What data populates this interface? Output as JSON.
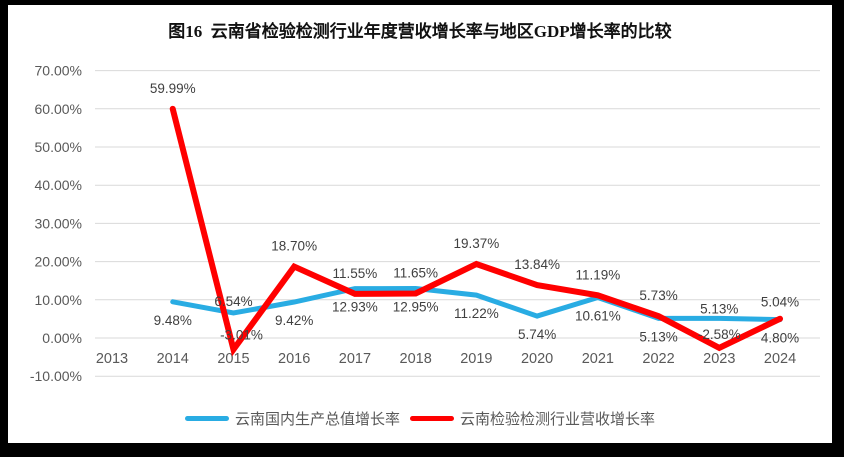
{
  "title": "图16  云南省检验检测行业年度营收增长率与地区GDP增长率的比较",
  "chart_data": {
    "type": "line",
    "title": "图16  云南省检验检测行业年度营收增长率与地区GDP增长率的比较",
    "categories": [
      "2013",
      "2014",
      "2015",
      "2016",
      "2017",
      "2018",
      "2019",
      "2020",
      "2021",
      "2022",
      "2023",
      "2024"
    ],
    "series": [
      {
        "name": "云南国内生产总值增长率",
        "color": "#29ACE3",
        "values": [
          null,
          9.48,
          6.54,
          9.42,
          12.93,
          12.95,
          11.22,
          5.74,
          10.61,
          5.13,
          5.13,
          4.8
        ],
        "labels": [
          null,
          "9.48%",
          "6.54%",
          "9.42%",
          "12.93%",
          "12.95%",
          "11.22%",
          "5.74%",
          "10.61%",
          "5.13%",
          "5.13%",
          "4.80%"
        ]
      },
      {
        "name": "云南检验检测行业营收增长率",
        "color": "#FF0000",
        "values": [
          null,
          59.99,
          -3.01,
          18.7,
          11.55,
          11.65,
          19.37,
          13.84,
          11.19,
          5.73,
          -2.58,
          5.04
        ],
        "labels": [
          null,
          "59.99%",
          "-3.01%",
          "18.70%",
          "11.55%",
          "11.65%",
          "19.37%",
          "13.84%",
          "11.19%",
          "5.73%",
          "-2.58%",
          "5.04%"
        ]
      }
    ],
    "xlabel": "",
    "ylabel": "",
    "y_axis": {
      "min": -10,
      "max": 70,
      "step": 10,
      "tick_labels": [
        "70.00%",
        "60.00%",
        "50.00%",
        "40.00%",
        "30.00%",
        "20.00%",
        "10.00%",
        "0.00%",
        "-10.00%"
      ]
    },
    "grid": true,
    "gridline_color": "#D9D9D9",
    "legend_position": "bottom"
  },
  "legend": {
    "items": [
      {
        "label": "云南国内生产总值增长率",
        "color": "#29ACE3"
      },
      {
        "label": "云南检验检测行业营收增长率",
        "color": "#FF0000"
      }
    ]
  }
}
